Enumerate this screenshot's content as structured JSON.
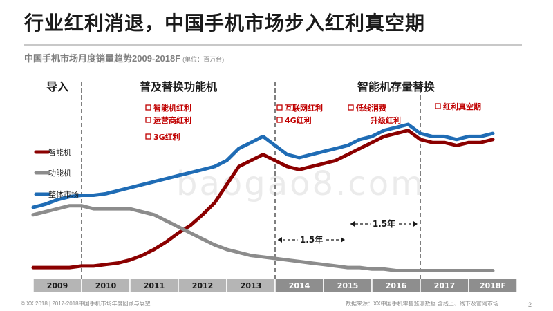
{
  "title": "行业红利消退，中国手机市场步入红利真空期",
  "subtitle": "中国手机市场月度销量趋势2009-2018F",
  "unit": "(单位：百万台)",
  "watermark": "baogao8.com",
  "footer_left": "© XX 2018 | 2017-2018中国手机市场年度回顾与展望",
  "footer_right": "数据来源：XX中国手机零售监测数据  含线上、线下及官网市场",
  "page_number": "2",
  "colors": {
    "smart": "#8b0000",
    "feature": "#8c8c8c",
    "total": "#1f6cb5",
    "accent": "#c00000"
  },
  "chart_data": {
    "type": "line",
    "title": "中国手机市场月度销量趋势2009-2018F",
    "x": [
      2009.0,
      2009.25,
      2009.5,
      2009.75,
      2010.0,
      2010.25,
      2010.5,
      2010.75,
      2011.0,
      2011.25,
      2011.5,
      2011.75,
      2012.0,
      2012.25,
      2012.5,
      2012.75,
      2013.0,
      2013.25,
      2013.5,
      2013.75,
      2014.0,
      2014.25,
      2014.5,
      2014.75,
      2015.0,
      2015.25,
      2015.5,
      2015.75,
      2016.0,
      2016.25,
      2016.5,
      2016.75,
      2017.0,
      2017.25,
      2017.5,
      2017.75,
      2018.0,
      2018.25,
      2018.5
    ],
    "xlim": [
      2009,
      2019
    ],
    "ylim": [
      0,
      1
    ],
    "series": [
      {
        "name": "智能机",
        "values": [
          0.05,
          0.05,
          0.05,
          0.05,
          0.06,
          0.06,
          0.07,
          0.08,
          0.1,
          0.13,
          0.17,
          0.22,
          0.28,
          0.33,
          0.4,
          0.48,
          0.6,
          0.72,
          0.76,
          0.8,
          0.76,
          0.72,
          0.7,
          0.72,
          0.74,
          0.76,
          0.8,
          0.84,
          0.88,
          0.92,
          0.94,
          0.96,
          0.9,
          0.88,
          0.88,
          0.86,
          0.88,
          0.88,
          0.9
        ]
      },
      {
        "name": "功能机",
        "values": [
          0.4,
          0.42,
          0.44,
          0.46,
          0.46,
          0.44,
          0.44,
          0.44,
          0.44,
          0.42,
          0.4,
          0.36,
          0.32,
          0.28,
          0.24,
          0.2,
          0.17,
          0.15,
          0.13,
          0.12,
          0.11,
          0.1,
          0.09,
          0.08,
          0.07,
          0.06,
          0.05,
          0.05,
          0.04,
          0.04,
          0.03,
          0.03,
          0.03,
          0.03,
          0.03,
          0.03,
          0.03,
          0.03,
          0.03
        ]
      },
      {
        "name": "整体市场",
        "values": [
          0.45,
          0.47,
          0.5,
          0.52,
          0.53,
          0.53,
          0.54,
          0.56,
          0.58,
          0.6,
          0.62,
          0.64,
          0.66,
          0.68,
          0.7,
          0.72,
          0.76,
          0.84,
          0.88,
          0.92,
          0.86,
          0.8,
          0.78,
          0.8,
          0.82,
          0.84,
          0.86,
          0.9,
          0.92,
          0.96,
          0.98,
          1.0,
          0.94,
          0.92,
          0.92,
          0.9,
          0.92,
          0.92,
          0.94
        ]
      }
    ],
    "year_labels": [
      "2009",
      "2010",
      "2011",
      "2012",
      "2013",
      "2014",
      "2015",
      "2016",
      "2017",
      "2018F"
    ],
    "phases": [
      "导入",
      "普及替换功能机",
      "智能机存量替换"
    ],
    "dividers": [
      2010,
      2014,
      2017
    ],
    "annotations": [
      "智能机红利",
      "运营商红利",
      "3G红利",
      "互联网红利",
      "4G红利",
      "低线消费",
      "升级红利",
      "红利真空期"
    ],
    "intervals": [
      {
        "from": 2014,
        "to": 2015.5,
        "label": "1.5年"
      },
      {
        "from": 2015.5,
        "to": 2017,
        "label": "1.5年"
      }
    ]
  }
}
